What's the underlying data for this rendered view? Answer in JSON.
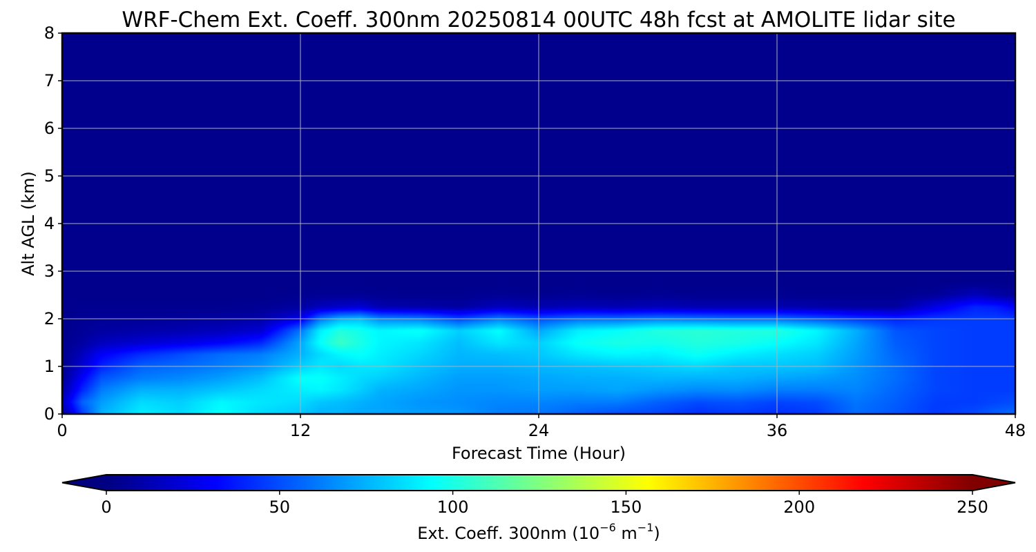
{
  "chart_data": {
    "type": "heatmap",
    "title": "WRF-Chem Ext. Coeff. 300nm  20250814 00UTC 48h fcst at AMOLITE lidar site",
    "xlabel": "Forecast Time (Hour)",
    "ylabel": "Alt AGL (km)",
    "xlim": [
      0,
      48
    ],
    "ylim": [
      0,
      8
    ],
    "x_ticks": [
      0,
      12,
      24,
      36,
      48
    ],
    "x_tick_labels": [
      "0",
      "12",
      "24",
      "36",
      "48"
    ],
    "y_ticks": [
      0,
      1,
      2,
      3,
      4,
      5,
      6,
      7,
      8
    ],
    "y_tick_labels": [
      "0",
      "1",
      "2",
      "3",
      "4",
      "5",
      "6",
      "7",
      "8"
    ],
    "grid": true,
    "colorbar": {
      "label_prefix": "Ext. Coeff. 300nm  (10",
      "label_exp1": "−6",
      "label_mid": " m",
      "label_exp2": "−1",
      "label_suffix": ")",
      "min": 0,
      "max": 250,
      "ticks": [
        0,
        50,
        100,
        150,
        200,
        250
      ],
      "tick_labels": [
        "0",
        "50",
        "100",
        "150",
        "200",
        "250"
      ],
      "colormap": "jet",
      "extend": "both"
    },
    "hours": [
      0,
      1,
      2,
      4,
      6,
      8,
      10,
      12,
      13,
      14,
      15,
      16,
      18,
      20,
      22,
      24,
      26,
      28,
      30,
      32,
      34,
      36,
      38,
      40,
      42,
      44,
      46,
      47,
      48
    ],
    "alt_km": [
      0,
      0.25,
      0.5,
      0.75,
      1,
      1.25,
      1.5,
      1.75,
      2,
      2.25,
      2.5,
      2.75,
      3,
      4,
      5,
      6,
      7,
      8
    ],
    "values": [
      [
        5,
        15,
        8,
        4,
        3,
        3,
        3,
        3,
        3,
        3,
        3,
        3,
        3,
        3,
        3,
        3,
        3,
        3
      ],
      [
        45,
        55,
        40,
        30,
        20,
        15,
        8,
        6,
        5,
        4,
        3,
        3,
        3,
        3,
        3,
        3,
        3,
        3
      ],
      [
        75,
        70,
        62,
        52,
        40,
        30,
        15,
        8,
        6,
        4,
        3,
        3,
        3,
        3,
        3,
        3,
        3,
        3
      ],
      [
        90,
        85,
        75,
        62,
        55,
        42,
        20,
        10,
        6,
        4,
        3,
        3,
        3,
        3,
        3,
        3,
        3,
        3
      ],
      [
        85,
        82,
        75,
        65,
        58,
        50,
        25,
        12,
        7,
        4,
        3,
        3,
        3,
        3,
        3,
        3,
        3,
        3
      ],
      [
        95,
        92,
        80,
        70,
        62,
        58,
        30,
        15,
        8,
        4,
        3,
        3,
        3,
        3,
        3,
        3,
        3,
        3
      ],
      [
        85,
        88,
        85,
        78,
        68,
        62,
        40,
        20,
        10,
        5,
        3,
        3,
        3,
        3,
        3,
        3,
        3,
        3
      ],
      [
        80,
        85,
        90,
        95,
        82,
        75,
        72,
        60,
        25,
        8,
        4,
        3,
        3,
        3,
        3,
        3,
        3,
        3
      ],
      [
        75,
        80,
        92,
        95,
        88,
        85,
        95,
        90,
        60,
        15,
        5,
        3,
        3,
        3,
        3,
        3,
        3,
        3
      ],
      [
        75,
        78,
        88,
        90,
        85,
        92,
        108,
        102,
        75,
        18,
        5,
        3,
        3,
        3,
        3,
        3,
        3,
        3
      ],
      [
        72,
        75,
        82,
        85,
        88,
        95,
        100,
        98,
        78,
        20,
        5,
        3,
        3,
        3,
        3,
        3,
        3,
        3
      ],
      [
        72,
        72,
        75,
        82,
        88,
        90,
        92,
        92,
        65,
        12,
        4,
        3,
        3,
        3,
        3,
        3,
        3,
        3
      ],
      [
        70,
        68,
        72,
        76,
        80,
        84,
        88,
        96,
        62,
        10,
        4,
        3,
        3,
        3,
        3,
        3,
        3,
        3
      ],
      [
        68,
        66,
        68,
        70,
        74,
        76,
        78,
        82,
        48,
        8,
        4,
        3,
        3,
        3,
        3,
        3,
        3,
        3
      ],
      [
        62,
        64,
        68,
        70,
        74,
        78,
        88,
        94,
        62,
        15,
        5,
        3,
        3,
        3,
        3,
        3,
        3,
        3
      ],
      [
        60,
        64,
        70,
        72,
        76,
        80,
        82,
        72,
        50,
        12,
        4,
        3,
        3,
        3,
        3,
        3,
        3,
        3
      ],
      [
        55,
        62,
        70,
        74,
        78,
        88,
        96,
        90,
        58,
        14,
        5,
        3,
        3,
        3,
        3,
        3,
        3,
        3
      ],
      [
        50,
        62,
        72,
        74,
        80,
        92,
        100,
        95,
        58,
        12,
        4,
        3,
        3,
        3,
        3,
        3,
        3,
        3
      ],
      [
        48,
        55,
        68,
        76,
        82,
        90,
        98,
        102,
        62,
        14,
        5,
        3,
        3,
        3,
        3,
        3,
        3,
        3
      ],
      [
        42,
        50,
        65,
        75,
        85,
        96,
        102,
        104,
        60,
        12,
        4,
        3,
        3,
        3,
        3,
        3,
        3,
        3
      ],
      [
        45,
        52,
        66,
        75,
        80,
        90,
        100,
        102,
        58,
        12,
        4,
        3,
        3,
        3,
        3,
        3,
        3,
        3
      ],
      [
        42,
        48,
        62,
        72,
        80,
        86,
        95,
        102,
        58,
        12,
        4,
        3,
        3,
        3,
        3,
        3,
        3,
        3
      ],
      [
        45,
        50,
        62,
        70,
        78,
        82,
        88,
        92,
        52,
        10,
        4,
        3,
        3,
        3,
        3,
        3,
        3,
        3
      ],
      [
        58,
        60,
        64,
        66,
        68,
        70,
        72,
        74,
        45,
        8,
        4,
        3,
        3,
        3,
        3,
        3,
        3,
        3
      ],
      [
        52,
        54,
        56,
        58,
        58,
        56,
        54,
        52,
        40,
        8,
        4,
        3,
        3,
        3,
        3,
        3,
        3,
        3
      ],
      [
        45,
        46,
        48,
        48,
        48,
        48,
        48,
        48,
        45,
        25,
        6,
        3,
        3,
        3,
        3,
        3,
        3,
        3
      ],
      [
        50,
        46,
        46,
        46,
        46,
        46,
        46,
        46,
        46,
        40,
        15,
        4,
        3,
        3,
        3,
        3,
        3,
        3
      ],
      [
        55,
        48,
        46,
        46,
        46,
        46,
        46,
        46,
        46,
        38,
        10,
        4,
        3,
        3,
        3,
        3,
        3,
        3
      ],
      [
        58,
        50,
        46,
        46,
        46,
        46,
        46,
        46,
        45,
        30,
        6,
        3,
        3,
        3,
        3,
        3,
        3,
        3
      ]
    ]
  }
}
